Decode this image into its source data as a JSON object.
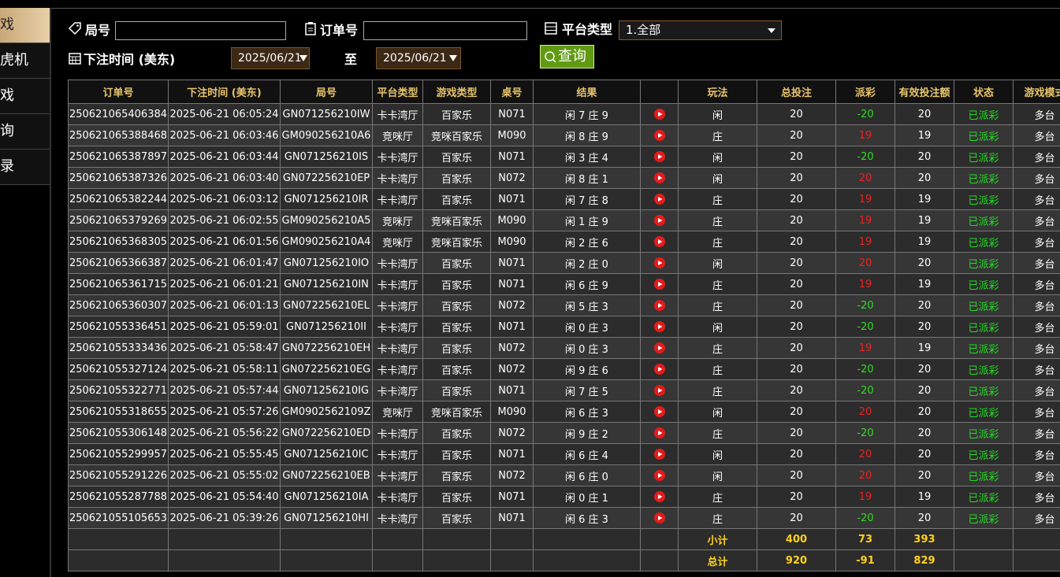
{
  "sidebar": {
    "items": [
      "戏",
      "虎机",
      "戏",
      "询",
      "录"
    ]
  },
  "filters": {
    "round_label": "局号",
    "order_label": "订单号",
    "platform_label": "平台类型",
    "platform_value": "1.全部",
    "time_label": "下注时间 (美东)",
    "date_from": "2025/06/21",
    "to_label": "至",
    "date_to": "2025/06/21",
    "search_button": "查询"
  },
  "table": {
    "headers": [
      "订单号",
      "下注时间 (美东)",
      "局号",
      "平台类型",
      "游戏类型",
      "桌号",
      "结果",
      "玩法",
      "总投注",
      "派彩",
      "有效投注额",
      "状态",
      "游戏模式"
    ],
    "rows": [
      [
        "250621065406384",
        "2025-06-21 06:05:24",
        "GN071256210IW",
        "卡卡湾厅",
        "百家乐",
        "N071",
        "闲 7 庄 9",
        "闲",
        20,
        -20,
        20,
        "已派彩",
        "多台"
      ],
      [
        "250621065388468",
        "2025-06-21 06:03:46",
        "GM090256210A6",
        "竞咪厅",
        "竞咪百家乐",
        "M090",
        "闲 8 庄 9",
        "庄",
        20,
        19,
        19,
        "已派彩",
        "多台"
      ],
      [
        "250621065387897",
        "2025-06-21 06:03:44",
        "GN071256210IS",
        "卡卡湾厅",
        "百家乐",
        "N071",
        "闲 3 庄 4",
        "闲",
        20,
        -20,
        20,
        "已派彩",
        "多台"
      ],
      [
        "250621065387326",
        "2025-06-21 06:03:40",
        "GN072256210EP",
        "卡卡湾厅",
        "百家乐",
        "N072",
        "闲 8 庄 1",
        "闲",
        20,
        20,
        20,
        "已派彩",
        "多台"
      ],
      [
        "250621065382244",
        "2025-06-21 06:03:12",
        "GN071256210IR",
        "卡卡湾厅",
        "百家乐",
        "N071",
        "闲 7 庄 8",
        "庄",
        20,
        19,
        19,
        "已派彩",
        "多台"
      ],
      [
        "250621065379269",
        "2025-06-21 06:02:55",
        "GM090256210A5",
        "竞咪厅",
        "竞咪百家乐",
        "M090",
        "闲 1 庄 9",
        "庄",
        20,
        19,
        19,
        "已派彩",
        "多台"
      ],
      [
        "250621065368305",
        "2025-06-21 06:01:56",
        "GM090256210A4",
        "竞咪厅",
        "竞咪百家乐",
        "M090",
        "闲 2 庄 6",
        "庄",
        20,
        19,
        19,
        "已派彩",
        "多台"
      ],
      [
        "250621065366387",
        "2025-06-21 06:01:47",
        "GN071256210IO",
        "卡卡湾厅",
        "百家乐",
        "N071",
        "闲 2 庄 0",
        "闲",
        20,
        20,
        20,
        "已派彩",
        "多台"
      ],
      [
        "250621065361715",
        "2025-06-21 06:01:21",
        "GN071256210IN",
        "卡卡湾厅",
        "百家乐",
        "N071",
        "闲 6 庄 9",
        "庄",
        20,
        19,
        19,
        "已派彩",
        "多台"
      ],
      [
        "250621065360307",
        "2025-06-21 06:01:13",
        "GN072256210EL",
        "卡卡湾厅",
        "百家乐",
        "N072",
        "闲 5 庄 3",
        "庄",
        20,
        -20,
        20,
        "已派彩",
        "多台"
      ],
      [
        "250621055336451",
        "2025-06-21 05:59:01",
        "GN071256210II",
        "卡卡湾厅",
        "百家乐",
        "N071",
        "闲 0 庄 3",
        "闲",
        20,
        -20,
        20,
        "已派彩",
        "多台"
      ],
      [
        "250621055333436",
        "2025-06-21 05:58:47",
        "GN072256210EH",
        "卡卡湾厅",
        "百家乐",
        "N072",
        "闲 0 庄 3",
        "庄",
        20,
        19,
        19,
        "已派彩",
        "多台"
      ],
      [
        "250621055327124",
        "2025-06-21 05:58:11",
        "GN072256210EG",
        "卡卡湾厅",
        "百家乐",
        "N072",
        "闲 9 庄 6",
        "庄",
        20,
        -20,
        20,
        "已派彩",
        "多台"
      ],
      [
        "250621055322771",
        "2025-06-21 05:57:44",
        "GN071256210IG",
        "卡卡湾厅",
        "百家乐",
        "N071",
        "闲 7 庄 5",
        "庄",
        20,
        -20,
        20,
        "已派彩",
        "多台"
      ],
      [
        "250621055318655",
        "2025-06-21 05:57:26",
        "GM0902562109Z",
        "竞咪厅",
        "竞咪百家乐",
        "M090",
        "闲 6 庄 3",
        "闲",
        20,
        20,
        20,
        "已派彩",
        "多台"
      ],
      [
        "250621055306148",
        "2025-06-21 05:56:22",
        "GN072256210ED",
        "卡卡湾厅",
        "百家乐",
        "N072",
        "闲 9 庄 2",
        "庄",
        20,
        -20,
        20,
        "已派彩",
        "多台"
      ],
      [
        "250621055299957",
        "2025-06-21 05:55:45",
        "GN071256210IC",
        "卡卡湾厅",
        "百家乐",
        "N071",
        "闲 6 庄 4",
        "闲",
        20,
        20,
        20,
        "已派彩",
        "多台"
      ],
      [
        "250621055291226",
        "2025-06-21 05:55:02",
        "GN072256210EB",
        "卡卡湾厅",
        "百家乐",
        "N072",
        "闲 6 庄 0",
        "闲",
        20,
        20,
        20,
        "已派彩",
        "多台"
      ],
      [
        "250621055287788",
        "2025-06-21 05:54:40",
        "GN071256210IA",
        "卡卡湾厅",
        "百家乐",
        "N071",
        "闲 0 庄 1",
        "庄",
        20,
        19,
        19,
        "已派彩",
        "多台"
      ],
      [
        "250621055105653",
        "2025-06-21 05:39:26",
        "GN071256210HI",
        "卡卡湾厅",
        "百家乐",
        "N071",
        "闲 6 庄 3",
        "庄",
        20,
        -20,
        20,
        "已派彩",
        "多台"
      ]
    ],
    "subtotal": {
      "label": "小计",
      "total_bet": 400,
      "payout": 73,
      "valid_bet": 393
    },
    "total": {
      "label": "总计",
      "total_bet": 920,
      "payout": -91,
      "valid_bet": 829
    }
  }
}
